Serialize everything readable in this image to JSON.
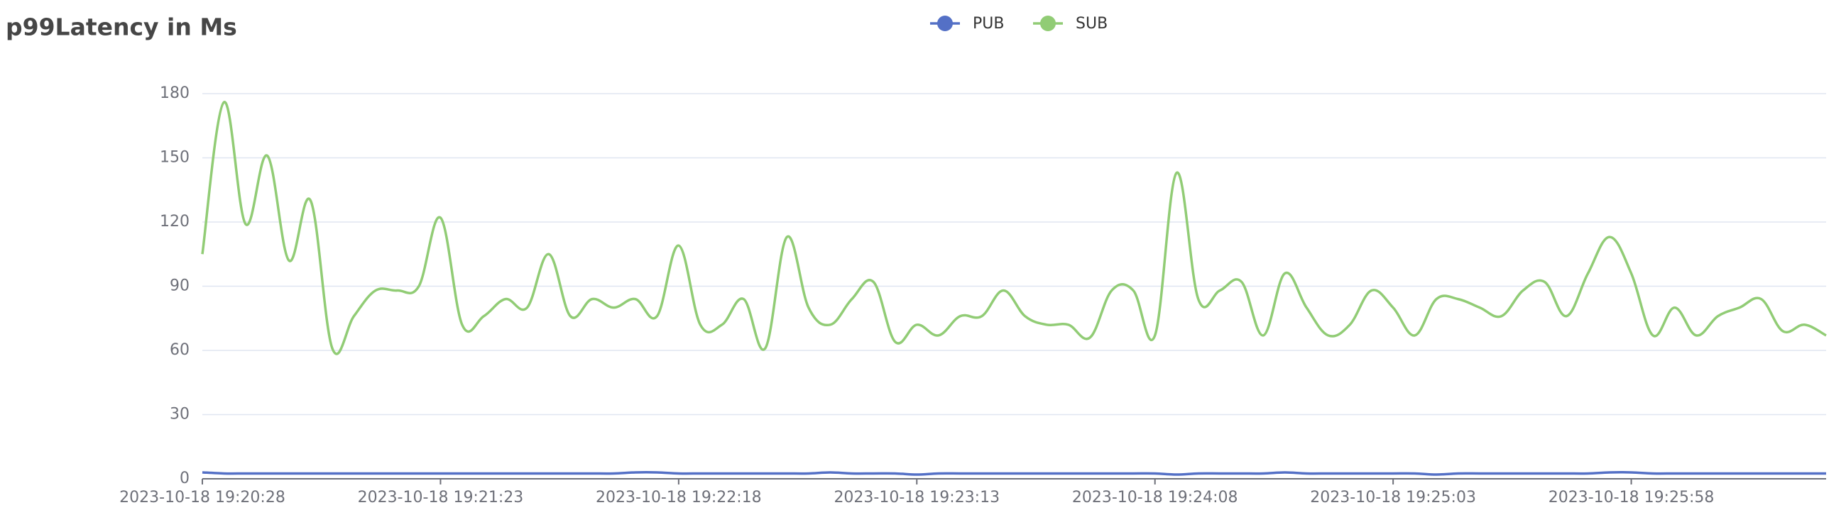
{
  "chart_data": {
    "type": "line",
    "title": "p99Latency in Ms",
    "categories": [
      "2023-10-18 19:20:28",
      null,
      null,
      null,
      null,
      null,
      null,
      null,
      null,
      null,
      null,
      "2023-10-18 19:21:23",
      null,
      null,
      null,
      null,
      null,
      null,
      null,
      null,
      null,
      null,
      "2023-10-18 19:22:18",
      null,
      null,
      null,
      null,
      null,
      null,
      null,
      null,
      null,
      null,
      "2023-10-18 19:23:13",
      null,
      null,
      null,
      null,
      null,
      null,
      null,
      null,
      null,
      null,
      "2023-10-18 19:24:08",
      null,
      null,
      null,
      null,
      null,
      null,
      null,
      null,
      null,
      null,
      "2023-10-18 19:25:03",
      null,
      null,
      null,
      null,
      null,
      null,
      null,
      null,
      null,
      null,
      "2023-10-18 19:25:58",
      null,
      null,
      null,
      null,
      null,
      null,
      null,
      null,
      null
    ],
    "series": [
      {
        "name": "PUB",
        "color": "#5470c6",
        "values": [
          3,
          2.5,
          2.5,
          2.5,
          2.5,
          2.5,
          2.5,
          2.5,
          2.5,
          2.5,
          2.5,
          2.5,
          2.5,
          2.5,
          2.5,
          2.5,
          2.5,
          2.5,
          2.5,
          2.5,
          3,
          3,
          2.5,
          2.5,
          2.5,
          2.5,
          2.5,
          2.5,
          2.5,
          3,
          2.5,
          2.5,
          2.5,
          2,
          2.5,
          2.5,
          2.5,
          2.5,
          2.5,
          2.5,
          2.5,
          2.5,
          2.5,
          2.5,
          2.5,
          2,
          2.5,
          2.5,
          2.5,
          2.5,
          3,
          2.5,
          2.5,
          2.5,
          2.5,
          2.5,
          2.5,
          2,
          2.5,
          2.5,
          2.5,
          2.5,
          2.5,
          2.5,
          2.5,
          3,
          3,
          2.5,
          2.5,
          2.5,
          2.5,
          2.5,
          2.5,
          2.5,
          2.5,
          2.5
        ]
      },
      {
        "name": "SUB",
        "color": "#91cc75",
        "values": [
          105,
          176,
          119,
          151,
          102,
          130,
          61,
          76,
          88,
          88,
          90,
          122,
          72,
          76,
          84,
          80,
          105,
          76,
          84,
          80,
          84,
          76,
          109,
          72,
          72,
          84,
          61,
          113,
          80,
          72,
          84,
          92,
          64,
          72,
          67,
          76,
          76,
          88,
          76,
          72,
          72,
          66,
          88,
          88,
          67,
          143,
          84,
          88,
          92,
          67,
          96,
          80,
          67,
          72,
          88,
          80,
          67,
          84,
          84,
          80,
          76,
          88,
          92,
          76,
          96,
          113,
          96,
          67,
          80,
          67,
          76,
          80,
          84,
          69,
          72,
          67
        ]
      }
    ],
    "ylim": [
      0,
      180
    ],
    "yticks": [
      0,
      30,
      60,
      90,
      120,
      150,
      180
    ],
    "grid": true
  }
}
